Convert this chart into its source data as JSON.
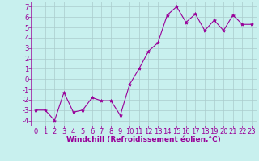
{
  "x": [
    0,
    1,
    2,
    3,
    4,
    5,
    6,
    7,
    8,
    9,
    10,
    11,
    12,
    13,
    14,
    15,
    16,
    17,
    18,
    19,
    20,
    21,
    22,
    23
  ],
  "y": [
    -3,
    -3,
    -4,
    -1.3,
    -3.2,
    -3,
    -1.8,
    -2.1,
    -2.1,
    -3.5,
    -0.5,
    1.0,
    2.7,
    3.5,
    6.2,
    7.0,
    5.5,
    6.3,
    4.7,
    5.7,
    4.7,
    6.2,
    5.3,
    5.3
  ],
  "line_color": "#990099",
  "marker": "*",
  "marker_size": 3,
  "bg_color": "#c8f0ee",
  "grid_color": "#aacccc",
  "xlabel": "Windchill (Refroidissement éolien,°C)",
  "xlim_min": -0.5,
  "xlim_max": 23.5,
  "ylim_min": -4.5,
  "ylim_max": 7.5,
  "yticks": [
    -4,
    -3,
    -2,
    -1,
    0,
    1,
    2,
    3,
    4,
    5,
    6,
    7
  ],
  "xticks": [
    0,
    1,
    2,
    3,
    4,
    5,
    6,
    7,
    8,
    9,
    10,
    11,
    12,
    13,
    14,
    15,
    16,
    17,
    18,
    19,
    20,
    21,
    22,
    23
  ],
  "xlabel_fontsize": 6.5,
  "tick_fontsize": 6.0,
  "line_width": 0.8
}
